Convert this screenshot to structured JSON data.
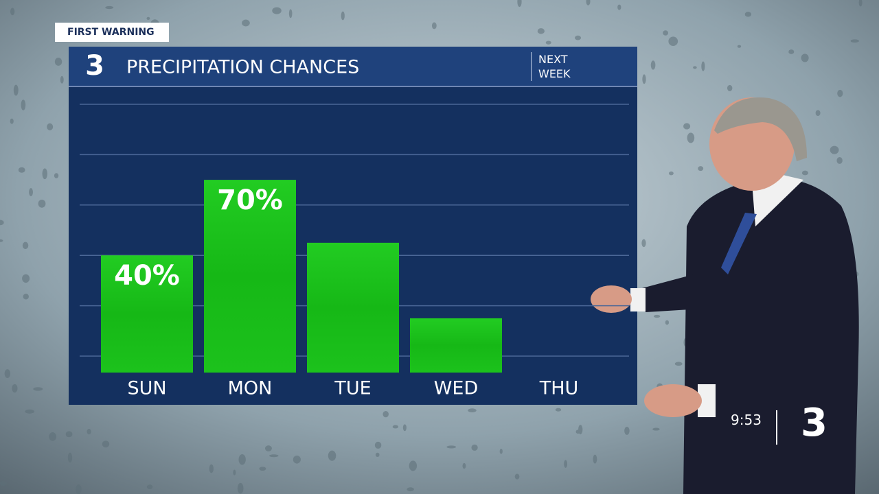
{
  "chart_data": {
    "type": "bar",
    "title": "PRECIPITATION CHANCES",
    "subtitle": "NEXT WEEK",
    "categories": [
      "SUN",
      "MON",
      "TUE",
      "WED",
      "THU"
    ],
    "values": [
      40,
      70,
      45,
      15,
      0
    ],
    "value_labels": [
      "40%",
      "70%",
      null,
      null,
      null
    ],
    "color": "#1cc21c",
    "ylim": [
      0,
      100
    ],
    "yticks": [
      0,
      20,
      40,
      60,
      80,
      100
    ],
    "grid": true
  },
  "overlay": {
    "banner": "FIRST WARNING",
    "logo": "3",
    "clock": "9:53"
  }
}
